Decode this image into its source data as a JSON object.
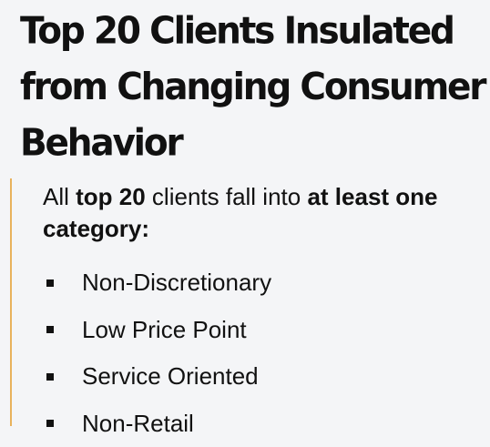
{
  "title": {
    "line1": "Top 20 Clients Insulated",
    "line2": "from Changing Consumer",
    "line3": "Behavior"
  },
  "intro": {
    "part1": "All ",
    "part2": "top 20",
    "part3": " clients fall into ",
    "part4": "at least one category:"
  },
  "categories": [
    "Non-Discretionary",
    "Low Price Point",
    "Service Oriented",
    "Non-Retail"
  ],
  "colors": {
    "accent_rule": "#e8b25c",
    "text": "#111111",
    "background": "#f4f5f7"
  }
}
